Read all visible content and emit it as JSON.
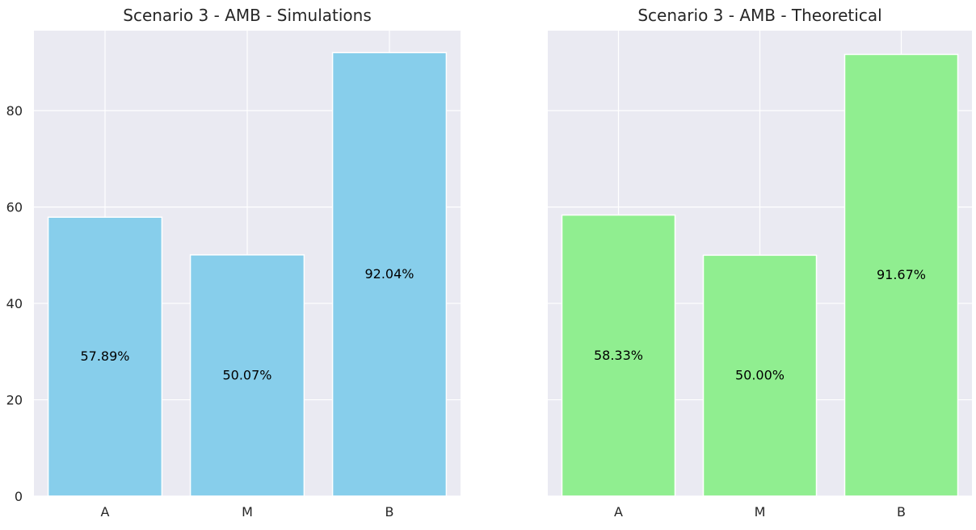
{
  "chart_data": [
    {
      "type": "bar",
      "title": "Scenario 3 - AMB - Simulations",
      "categories": [
        "A",
        "M",
        "B"
      ],
      "values": [
        57.89,
        50.07,
        92.04
      ],
      "data_labels": [
        "57.89%",
        "50.07%",
        "92.04%"
      ],
      "ylim": [
        0,
        96.6
      ],
      "yticks": [
        0,
        20,
        40,
        60,
        80
      ],
      "color": "#87ceeb",
      "grid": true
    },
    {
      "type": "bar",
      "title": "Scenario 3 - AMB - Theoretical",
      "categories": [
        "A",
        "M",
        "B"
      ],
      "values": [
        58.33,
        50.0,
        91.67
      ],
      "data_labels": [
        "58.33%",
        "50.00%",
        "91.67%"
      ],
      "ylim": [
        0,
        96.6
      ],
      "yticks": [],
      "color": "#90ee90",
      "grid": true
    }
  ],
  "style": {
    "plot_background": "#eaeaf2",
    "grid_color": "#ffffff",
    "text_color": "#262626"
  }
}
